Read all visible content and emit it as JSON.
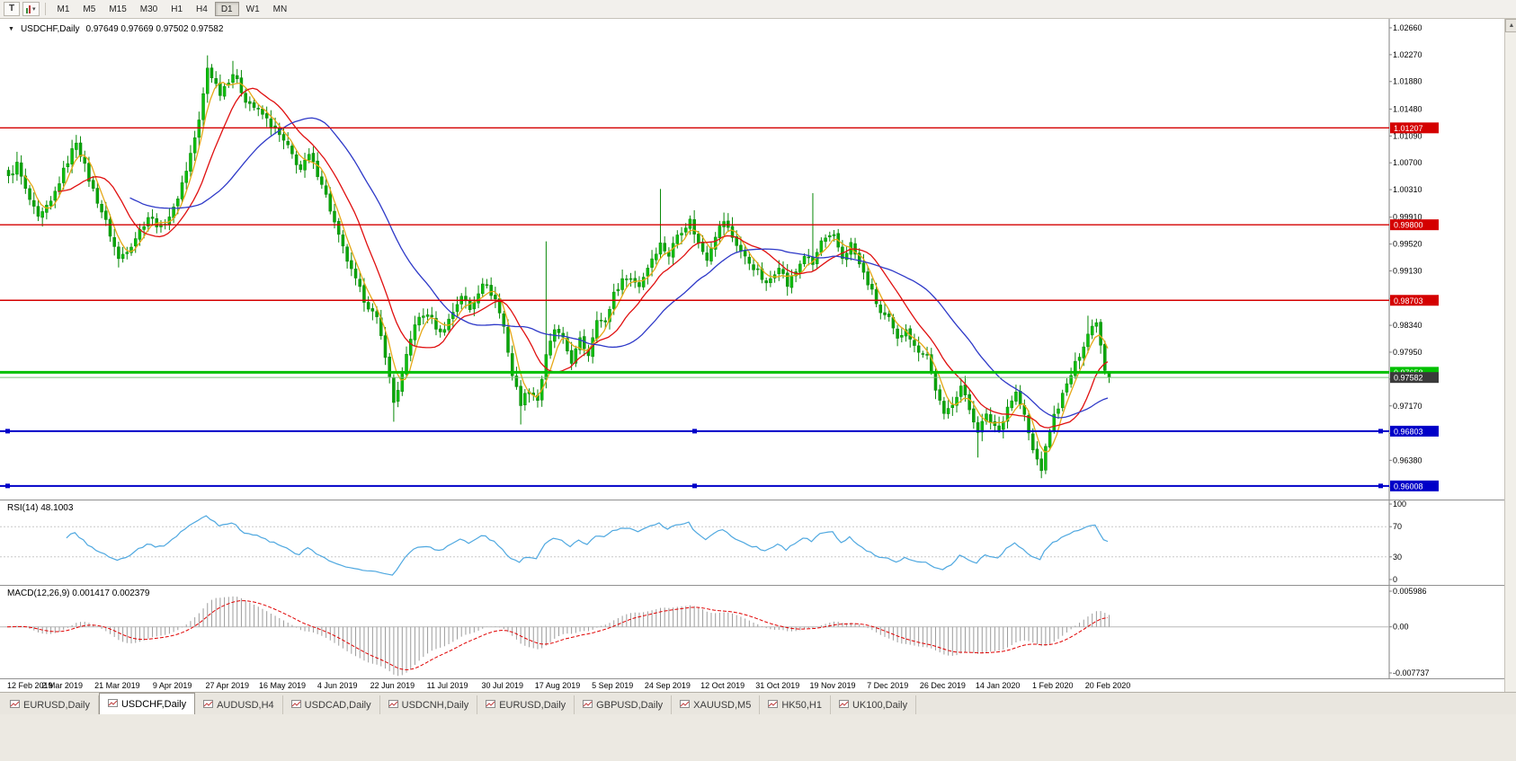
{
  "toolbar": {
    "tool_glyph": "T",
    "timeframes": [
      "M1",
      "M5",
      "M15",
      "M30",
      "H1",
      "H4",
      "D1",
      "W1",
      "MN"
    ],
    "active_timeframe": "D1"
  },
  "chart": {
    "symbol_title": "USDCHF,Daily",
    "ohlc": "0.97649 0.97669 0.97502 0.97582",
    "open": "0.97649",
    "high": "0.97669",
    "low": "0.97502",
    "close": "0.97582"
  },
  "price_axis": {
    "ticks": [
      "1.02660",
      "1.02270",
      "1.01880",
      "1.01480",
      "1.01090",
      "1.00700",
      "1.00310",
      "0.99910",
      "0.99520",
      "0.99130",
      "0.98730",
      "0.98340",
      "0.97950",
      "0.97560",
      "0.97170",
      "0.96770",
      "0.96380",
      "0.95990"
    ],
    "top_price": 1.0279,
    "bottom_price": 0.9581
  },
  "hlines": [
    {
      "id": "resistance-1",
      "price": 1.01207,
      "label": "1.01207",
      "color": "#D40000",
      "width": 1.4,
      "markers": false
    },
    {
      "id": "resistance-2",
      "price": 0.998,
      "label": "0.99800",
      "color": "#D40000",
      "width": 1.4,
      "markers": false
    },
    {
      "id": "resistance-3",
      "price": 0.98703,
      "label": "0.98703",
      "color": "#D40000",
      "width": 1.4,
      "markers": false
    },
    {
      "id": "support-green",
      "price": 0.97658,
      "label": "0.97658",
      "color": "#00C000",
      "width": 3,
      "markers": false
    },
    {
      "id": "support-blue-1",
      "price": 0.96803,
      "label": "0.96803",
      "color": "#0000C8",
      "width": 2,
      "markers": true
    },
    {
      "id": "support-blue-2",
      "price": 0.96008,
      "label": "0.96008",
      "color": "#0000C8",
      "width": 2,
      "markers": true
    }
  ],
  "current_price": {
    "value": 0.97582,
    "label": "0.97582",
    "badge_color": "#3A3A3A",
    "line_color": "#7FBF7F"
  },
  "rsi": {
    "label": "RSI(14) 48.1003",
    "period": 14,
    "value": 48.1003,
    "ticks": [
      "100",
      "70",
      "30",
      "0"
    ],
    "levels": [
      70,
      30
    ],
    "color": "#4FA8E0"
  },
  "macd": {
    "label": "MACD(12,26,9) 0.001417 0.002379",
    "fast": 12,
    "slow": 26,
    "signal": 9,
    "macd_value": 0.001417,
    "signal_value": 0.002379,
    "ticks": [
      "0.005986",
      "0.00",
      "-0.007737"
    ],
    "max": 0.005986,
    "min": -0.007737,
    "histogram_color": "#9C9C9C",
    "signal_color": "#E00000"
  },
  "date_axis": {
    "step": 13,
    "labels": [
      "12 Feb 2019",
      "2 Mar 2019",
      "21 Mar 2019",
      "9 Apr 2019",
      "27 Apr 2019",
      "16 May 2019",
      "4 Jun 2019",
      "22 Jun 2019",
      "11 Jul 2019",
      "30 Jul 2019",
      "17 Aug 2019",
      "5 Sep 2019",
      "24 Sep 2019",
      "12 Oct 2019",
      "31 Oct 2019",
      "19 Nov 2019",
      "7 Dec 2019",
      "26 Dec 2019",
      "14 Jan 2020",
      "1 Feb 2020",
      "20 Feb 2020"
    ]
  },
  "tabs": [
    {
      "label": "EURUSD,Daily",
      "active": false
    },
    {
      "label": "USDCHF,Daily",
      "active": true
    },
    {
      "label": "AUDUSD,H4",
      "active": false
    },
    {
      "label": "USDCAD,Daily",
      "active": false
    },
    {
      "label": "USDCNH,Daily",
      "active": false
    },
    {
      "label": "EURUSD,Daily",
      "active": false
    },
    {
      "label": "GBPUSD,Daily",
      "active": false
    },
    {
      "label": "XAUUSD,M5",
      "active": false
    },
    {
      "label": "HK50,H1",
      "active": false
    },
    {
      "label": "UK100,Daily",
      "active": false
    }
  ],
  "chart_data": {
    "type": "candlestick",
    "symbol": "USDCHF",
    "period": "Daily",
    "candle_count": 261,
    "ylim": [
      0.9581,
      1.0279
    ],
    "last_candle": {
      "open": 0.97649,
      "high": 0.97669,
      "low": 0.97502,
      "close": 0.97582
    },
    "close_keypoints": [
      [
        0,
        1.0048
      ],
      [
        2,
        1.0068
      ],
      [
        4,
        1.003
      ],
      [
        7,
        0.9988
      ],
      [
        10,
        1.0012
      ],
      [
        13,
        1.0058
      ],
      [
        16,
        1.0102
      ],
      [
        19,
        1.0046
      ],
      [
        23,
        0.9984
      ],
      [
        26,
        0.993
      ],
      [
        29,
        0.9952
      ],
      [
        33,
        0.9992
      ],
      [
        36,
        0.9976
      ],
      [
        39,
        1.0002
      ],
      [
        42,
        1.006
      ],
      [
        45,
        1.013
      ],
      [
        47,
        1.0208
      ],
      [
        50,
        1.0172
      ],
      [
        53,
        1.02
      ],
      [
        56,
        1.0162
      ],
      [
        60,
        1.014
      ],
      [
        63,
        1.0118
      ],
      [
        66,
        1.0092
      ],
      [
        69,
        1.006
      ],
      [
        71,
        1.008
      ],
      [
        74,
        1.0042
      ],
      [
        78,
        0.9962
      ],
      [
        81,
        0.9912
      ],
      [
        84,
        0.9872
      ],
      [
        87,
        0.9842
      ],
      [
        89,
        0.9792
      ],
      [
        91,
        0.9722
      ],
      [
        93,
        0.9762
      ],
      [
        96,
        0.9838
      ],
      [
        99,
        0.9852
      ],
      [
        102,
        0.9822
      ],
      [
        104,
        0.9842
      ],
      [
        107,
        0.9878
      ],
      [
        109,
        0.9856
      ],
      [
        112,
        0.9898
      ],
      [
        115,
        0.9872
      ],
      [
        117,
        0.9832
      ],
      [
        119,
        0.9762
      ],
      [
        121,
        0.9722
      ],
      [
        123,
        0.9742
      ],
      [
        125,
        0.9726
      ],
      [
        127,
        0.9788
      ],
      [
        129,
        0.9828
      ],
      [
        131,
        0.9812
      ],
      [
        133,
        0.9782
      ],
      [
        135,
        0.9812
      ],
      [
        137,
        0.9792
      ],
      [
        139,
        0.9846
      ],
      [
        141,
        0.9836
      ],
      [
        143,
        0.9882
      ],
      [
        146,
        0.9906
      ],
      [
        149,
        0.9892
      ],
      [
        152,
        0.9932
      ],
      [
        154,
        0.9952
      ],
      [
        156,
        0.9936
      ],
      [
        158,
        0.9966
      ],
      [
        161,
        0.9986
      ],
      [
        163,
        0.9952
      ],
      [
        165,
        0.9932
      ],
      [
        167,
        0.9966
      ],
      [
        169,
        0.9986
      ],
      [
        171,
        0.9962
      ],
      [
        174,
        0.9932
      ],
      [
        177,
        0.9912
      ],
      [
        179,
        0.9892
      ],
      [
        182,
        0.9922
      ],
      [
        184,
        0.9892
      ],
      [
        186,
        0.9912
      ],
      [
        188,
        0.9936
      ],
      [
        190,
        0.9922
      ],
      [
        192,
        0.9956
      ],
      [
        195,
        0.9962
      ],
      [
        197,
        0.9932
      ],
      [
        199,
        0.9952
      ],
      [
        201,
        0.9922
      ],
      [
        204,
        0.9882
      ],
      [
        206,
        0.9852
      ],
      [
        208,
        0.9842
      ],
      [
        210,
        0.9812
      ],
      [
        212,
        0.9832
      ],
      [
        214,
        0.9802
      ],
      [
        217,
        0.9792
      ],
      [
        219,
        0.9742
      ],
      [
        221,
        0.9702
      ],
      [
        223,
        0.9722
      ],
      [
        225,
        0.9746
      ],
      [
        227,
        0.9712
      ],
      [
        229,
        0.9682
      ],
      [
        231,
        0.9702
      ],
      [
        234,
        0.9682
      ],
      [
        236,
        0.9716
      ],
      [
        238,
        0.9736
      ],
      [
        240,
        0.9702
      ],
      [
        242,
        0.9652
      ],
      [
        244,
        0.9626
      ],
      [
        246,
        0.9682
      ],
      [
        247,
        0.9702
      ],
      [
        249,
        0.9732
      ],
      [
        251,
        0.9762
      ],
      [
        253,
        0.9792
      ],
      [
        255,
        0.9822
      ],
      [
        257,
        0.9842
      ],
      [
        258,
        0.9806
      ],
      [
        259,
        0.9772
      ],
      [
        260,
        0.97582
      ]
    ],
    "spikes_high": [
      [
        2,
        1.0086
      ],
      [
        16,
        1.0108
      ],
      [
        47,
        1.0226
      ],
      [
        53,
        1.0218
      ],
      [
        127,
        0.9956
      ],
      [
        154,
        1.0032
      ],
      [
        190,
        1.0026
      ],
      [
        255,
        0.9848
      ]
    ],
    "spikes_low": [
      [
        26,
        0.9918
      ],
      [
        91,
        0.9694
      ],
      [
        121,
        0.969
      ],
      [
        229,
        0.9642
      ],
      [
        244,
        0.9612
      ]
    ],
    "moving_averages": [
      {
        "period": 5,
        "color": "#E6A817"
      },
      {
        "period": 13,
        "color": "#E01010"
      },
      {
        "period": 30,
        "color": "#2E39C8"
      }
    ],
    "up_color": "#0FBF0F",
    "down_color": "#0AA50A",
    "wick_color": "#078807",
    "candle_border": "#078807"
  }
}
